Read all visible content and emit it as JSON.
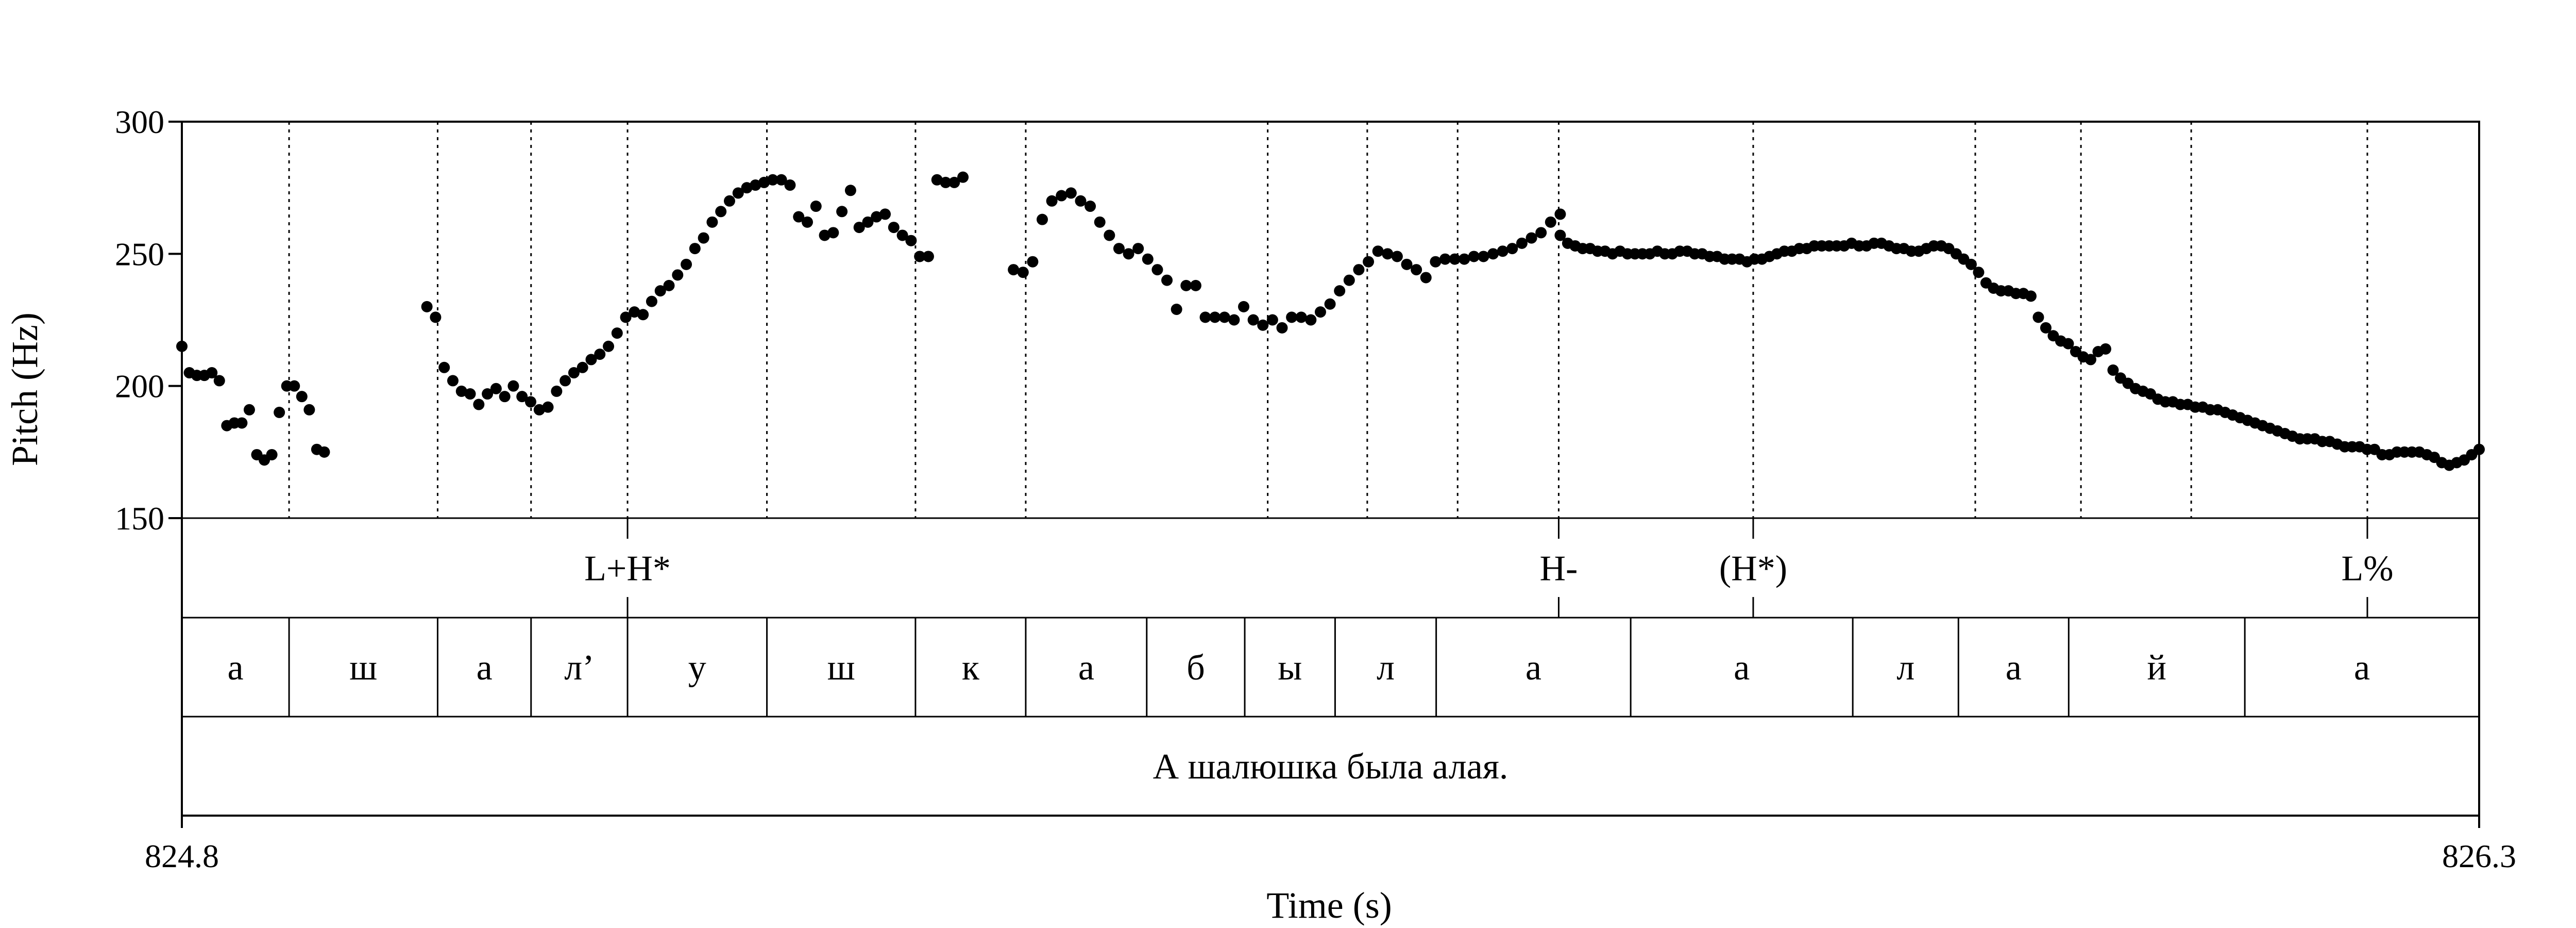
{
  "chart_data": {
    "type": "scatter",
    "xlabel": "Time (s)",
    "ylabel": "Pitch (Hz)",
    "xlim": [
      824.8,
      826.3
    ],
    "ylim": [
      150,
      300
    ],
    "x_tick_labels": [
      "824.8",
      "826.3"
    ],
    "y_ticks": [
      150,
      200,
      250,
      300
    ],
    "grid": false,
    "point_color": "#000000",
    "boundaries": [
      824.87,
      824.967,
      825.028,
      825.091,
      825.182,
      825.279,
      825.351,
      825.509,
      825.574,
      825.633,
      825.699,
      825.826,
      825.971,
      826.04,
      826.112,
      826.227
    ],
    "tone_tier": [
      {
        "t": 825.091,
        "label": "L+H*"
      },
      {
        "t": 825.699,
        "label": "H-"
      },
      {
        "t": 825.826,
        "label": "(H*)"
      },
      {
        "t": 826.227,
        "label": "L%"
      }
    ],
    "segment_tier": [
      {
        "start": 824.8,
        "end": 824.87,
        "label": "а"
      },
      {
        "start": 824.87,
        "end": 824.967,
        "label": "ш"
      },
      {
        "start": 824.967,
        "end": 825.028,
        "label": "а"
      },
      {
        "start": 825.028,
        "end": 825.091,
        "label": "л’"
      },
      {
        "start": 825.091,
        "end": 825.182,
        "label": "у"
      },
      {
        "start": 825.182,
        "end": 825.279,
        "label": "ш"
      },
      {
        "start": 825.279,
        "end": 825.351,
        "label": "к"
      },
      {
        "start": 825.351,
        "end": 825.43,
        "label": "а"
      },
      {
        "start": 825.43,
        "end": 825.494,
        "label": "б"
      },
      {
        "start": 825.494,
        "end": 825.553,
        "label": "ы"
      },
      {
        "start": 825.553,
        "end": 825.619,
        "label": "л"
      },
      {
        "start": 825.619,
        "end": 825.746,
        "label": "а"
      },
      {
        "start": 825.746,
        "end": 825.891,
        "label": "а"
      },
      {
        "start": 825.891,
        "end": 825.96,
        "label": "л"
      },
      {
        "start": 825.96,
        "end": 826.032,
        "label": "а"
      },
      {
        "start": 826.032,
        "end": 826.147,
        "label": "й"
      },
      {
        "start": 826.147,
        "end": 826.3,
        "label": "а"
      }
    ],
    "sentence_tier": [
      {
        "start": 824.8,
        "end": 826.3,
        "label": "А шалюшка была алая."
      }
    ],
    "pitch_segments": [
      {
        "t_start": 824.8,
        "t_end": 824.893,
        "points": [
          215,
          205,
          204,
          204,
          205,
          202,
          185,
          186,
          186,
          191,
          174,
          172,
          174,
          190,
          200,
          200,
          196,
          191,
          176,
          175
        ]
      },
      {
        "t_start": 824.96,
        "t_end": 825.31,
        "points": [
          230,
          226,
          207,
          202,
          198,
          197,
          193,
          197,
          199,
          196,
          200,
          196,
          194,
          191,
          192,
          198,
          202,
          205,
          207,
          210,
          212,
          215,
          220,
          226,
          228,
          227,
          232,
          236,
          238,
          242,
          246,
          252,
          256,
          262,
          266,
          270,
          273,
          275,
          276,
          277,
          278,
          278,
          276,
          264,
          262,
          268,
          257,
          258,
          266,
          274,
          260,
          262,
          264,
          265,
          260,
          257,
          255,
          249,
          249,
          278,
          277,
          277,
          279
        ]
      },
      {
        "t_start": 825.343,
        "t_end": 825.7,
        "points": [
          244,
          243,
          247,
          263,
          270,
          272,
          273,
          270,
          268,
          262,
          257,
          252,
          250,
          252,
          248,
          244,
          240,
          229,
          238,
          238,
          226,
          226,
          226,
          225,
          230,
          225,
          223,
          225,
          222,
          226,
          226,
          225,
          228,
          231,
          236,
          240,
          244,
          247,
          251,
          250,
          249,
          246,
          244,
          241,
          247,
          248,
          248,
          248,
          249,
          249,
          250,
          251,
          252,
          254,
          256,
          258,
          262,
          265
        ]
      },
      {
        "t_start": 825.7,
        "t_end": 826.3,
        "points": [
          257,
          254,
          253,
          252,
          252,
          251,
          251,
          250,
          251,
          250,
          250,
          250,
          250,
          251,
          250,
          250,
          251,
          251,
          250,
          250,
          249,
          249,
          248,
          248,
          248,
          247,
          248,
          248,
          249,
          250,
          251,
          251,
          252,
          252,
          253,
          253,
          253,
          253,
          253,
          254,
          253,
          253,
          254,
          254,
          253,
          252,
          252,
          251,
          251,
          252,
          253,
          253,
          252,
          250,
          248,
          246,
          243,
          239,
          237,
          236,
          236,
          235,
          235,
          234,
          226,
          222,
          219,
          217,
          216,
          213,
          211,
          210,
          213,
          214,
          206,
          203,
          201,
          199,
          198,
          197,
          195,
          194,
          194,
          193,
          193,
          192,
          192,
          191,
          191,
          190,
          189,
          188,
          187,
          186,
          185,
          184,
          183,
          182,
          181,
          180,
          180,
          180,
          179,
          179,
          178,
          177,
          177,
          177,
          176,
          176,
          174,
          174,
          175,
          175,
          175,
          175,
          174,
          173,
          171,
          170,
          171,
          172,
          174,
          176
        ]
      }
    ]
  }
}
